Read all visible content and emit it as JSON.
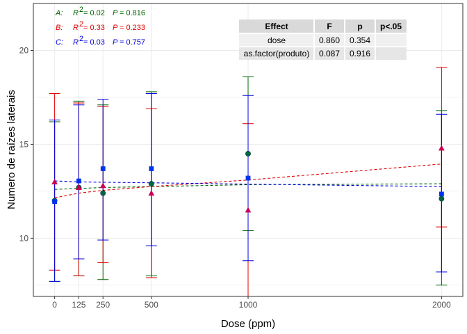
{
  "chart_data": {
    "type": "scatter",
    "xlabel": "Dose (ppm)",
    "ylabel": "Numero de raízes laterais",
    "xlim": [
      -110,
      2110
    ],
    "ylim": [
      6.9,
      22.5
    ],
    "x_ticks": [
      0,
      125,
      250,
      500,
      1000,
      2000
    ],
    "y_ticks": [
      10,
      15,
      20
    ],
    "grid": true,
    "series": [
      {
        "name": "A",
        "color": "#006400",
        "shape": "circle",
        "points": [
          {
            "x": 0,
            "y": 12.0,
            "lo": 7.7,
            "hi": 16.2
          },
          {
            "x": 125,
            "y": 12.7,
            "lo": 8.0,
            "hi": 17.3
          },
          {
            "x": 250,
            "y": 12.4,
            "lo": 7.8,
            "hi": 17.1
          },
          {
            "x": 500,
            "y": 12.9,
            "lo": 8.0,
            "hi": 17.8
          },
          {
            "x": 1000,
            "y": 14.5,
            "lo": 10.4,
            "hi": 18.6
          },
          {
            "x": 2000,
            "y": 12.1,
            "lo": 7.5,
            "hi": 16.8
          }
        ],
        "fit": {
          "x": [
            0,
            125,
            250,
            500,
            1000,
            2000
          ],
          "y": [
            12.6,
            12.65,
            12.7,
            12.75,
            12.85,
            12.9
          ]
        }
      },
      {
        "name": "B",
        "color": "#e00000",
        "shape": "triangle",
        "points": [
          {
            "x": 0,
            "y": 13.0,
            "lo": 8.3,
            "hi": 17.7
          },
          {
            "x": 125,
            "y": 12.7,
            "lo": 8.0,
            "hi": 17.2
          },
          {
            "x": 250,
            "y": 12.8,
            "lo": 8.7,
            "hi": 17.0
          },
          {
            "x": 500,
            "y": 12.4,
            "lo": 7.9,
            "hi": 16.9
          },
          {
            "x": 1000,
            "y": 11.5,
            "lo": 6.9,
            "hi": 16.1
          },
          {
            "x": 2000,
            "y": 14.8,
            "lo": 10.6,
            "hi": 19.1
          }
        ],
        "fit": {
          "x": [
            0,
            125,
            250,
            500,
            1000,
            2000
          ],
          "y": [
            12.15,
            12.4,
            12.55,
            12.75,
            13.1,
            13.95
          ]
        }
      },
      {
        "name": "C",
        "color": "#0000e0",
        "shape": "square",
        "points": [
          {
            "x": 0,
            "y": 11.95,
            "lo": 7.7,
            "hi": 16.3
          },
          {
            "x": 125,
            "y": 13.05,
            "lo": 8.9,
            "hi": 17.1
          },
          {
            "x": 250,
            "y": 13.7,
            "lo": 9.9,
            "hi": 17.4
          },
          {
            "x": 500,
            "y": 13.7,
            "lo": 9.6,
            "hi": 17.7
          },
          {
            "x": 1000,
            "y": 13.2,
            "lo": 8.8,
            "hi": 17.6
          },
          {
            "x": 2000,
            "y": 12.35,
            "lo": 8.2,
            "hi": 16.6
          }
        ],
        "fit": {
          "x": [
            0,
            125,
            250,
            500,
            1000,
            2000
          ],
          "y": [
            13.05,
            13.0,
            12.98,
            12.95,
            12.88,
            12.75
          ]
        }
      }
    ],
    "annotations": [
      {
        "letter": "A:",
        "r2": "= 0.02",
        "p": "= 0.816",
        "color": "#006400"
      },
      {
        "letter": "B:",
        "r2": "= 0.33",
        "p": "= 0.233",
        "color": "#e00000"
      },
      {
        "letter": "C:",
        "r2": "= 0.03",
        "p": "= 0.757",
        "color": "#0000e0"
      }
    ],
    "table": {
      "headers": [
        "Effect",
        "F",
        "p",
        "p<.05"
      ],
      "rows": [
        [
          "dose",
          "0.860",
          "0.354",
          ""
        ],
        [
          "as.factor(produto)",
          "0.087",
          "0.916",
          ""
        ]
      ]
    }
  }
}
